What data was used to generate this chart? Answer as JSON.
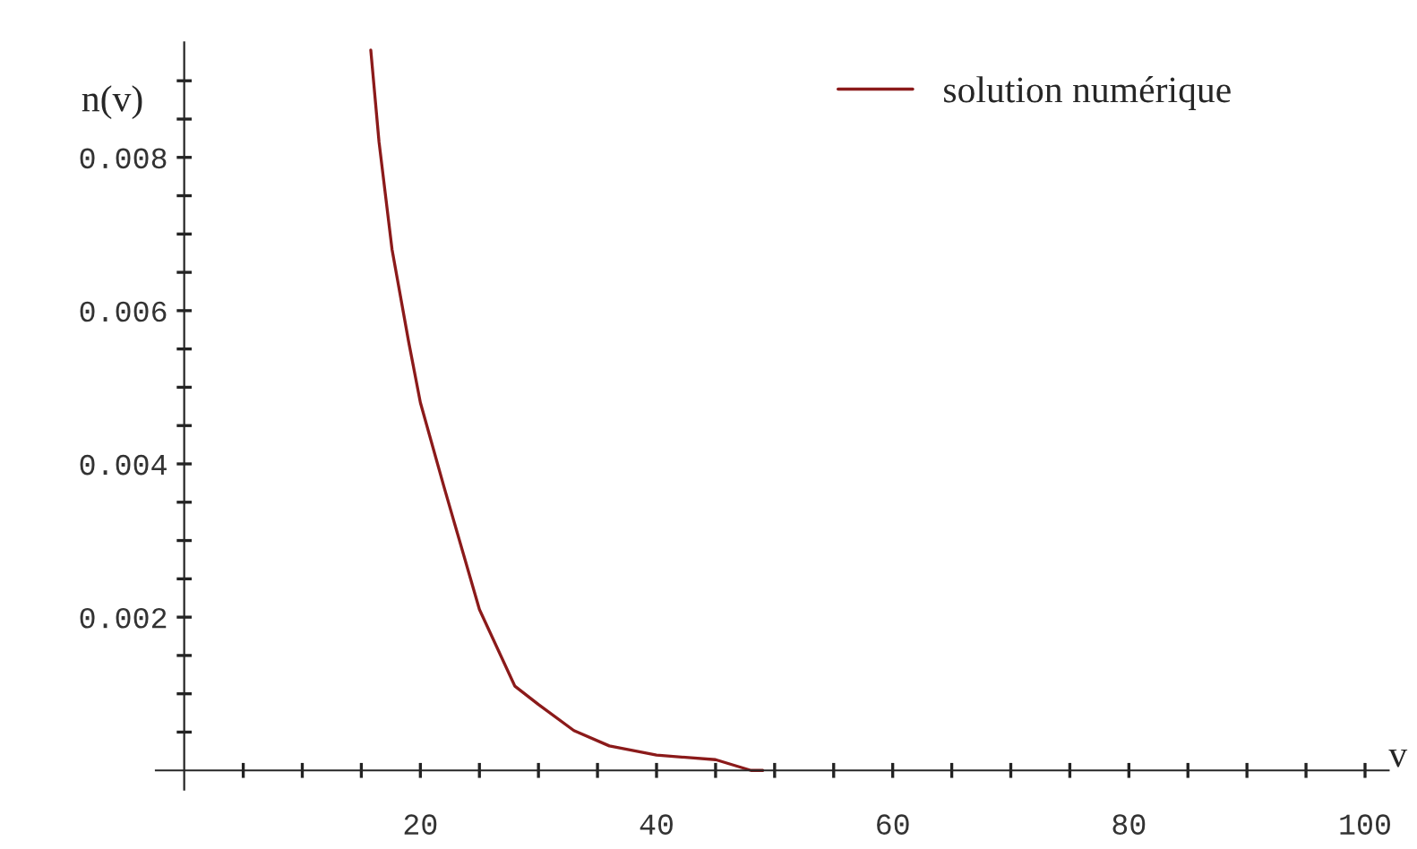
{
  "chart_data": {
    "type": "line",
    "xlabel": "v",
    "ylabel": "n(v)",
    "xlim": [
      -2.4,
      102
    ],
    "ylim": [
      -0.00025,
      0.0095
    ],
    "xticks": [
      {
        "value": 5,
        "label": null
      },
      {
        "value": 10,
        "label": null
      },
      {
        "value": 15,
        "label": null
      },
      20,
      {
        "value": 25,
        "label": null
      },
      {
        "value": 30,
        "label": null
      },
      {
        "value": 35,
        "label": null
      },
      40,
      {
        "value": 45,
        "label": null
      },
      {
        "value": 50,
        "label": null
      },
      {
        "value": 55,
        "label": null
      },
      60,
      {
        "value": 65,
        "label": null
      },
      {
        "value": 70,
        "label": null
      },
      {
        "value": 75,
        "label": null
      },
      80,
      {
        "value": 85,
        "label": null
      },
      {
        "value": 90,
        "label": null
      },
      {
        "value": 95,
        "label": null
      },
      100
    ],
    "yticks": [
      {
        "value": 0.0005,
        "label": null
      },
      {
        "value": 0.001,
        "label": null
      },
      {
        "value": 0.0015,
        "label": null
      },
      0.002,
      {
        "value": 0.0025,
        "label": null
      },
      {
        "value": 0.003,
        "label": null
      },
      {
        "value": 0.0035,
        "label": null
      },
      0.004,
      {
        "value": 0.0045,
        "label": null
      },
      {
        "value": 0.005,
        "label": null
      },
      {
        "value": 0.0055,
        "label": null
      },
      0.006,
      {
        "value": 0.0065,
        "label": null
      },
      {
        "value": 0.007,
        "label": null
      },
      {
        "value": 0.0075,
        "label": null
      },
      0.008,
      {
        "value": 0.0085,
        "label": null
      },
      {
        "value": 0.009,
        "label": null
      }
    ],
    "legend": "top right",
    "series": [
      {
        "name": "solution numérique",
        "color": "#8b1a1a",
        "x": [
          15.8,
          16.5,
          17.6,
          19,
          20,
          22,
          25,
          28,
          30,
          33,
          36,
          40,
          45,
          48,
          49
        ],
        "values": [
          0.0094,
          0.0082,
          0.0068,
          0.0056,
          0.0048,
          0.0037,
          0.0021,
          0.0011,
          0.00086,
          0.00052,
          0.00032,
          0.0002,
          0.00014,
          0.0,
          0.0
        ]
      }
    ]
  }
}
